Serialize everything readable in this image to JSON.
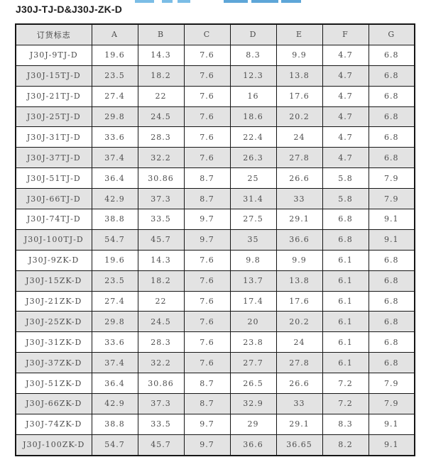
{
  "page": {
    "title": "J30J-TJ-D&J30J-ZK-D"
  },
  "table": {
    "headers": [
      "订货标志",
      "A",
      "B",
      "C",
      "D",
      "E",
      "F",
      "G"
    ],
    "rows": [
      [
        "J30J-9TJ-D",
        "19.6",
        "14.3",
        "7.6",
        "8.3",
        "9.9",
        "4.7",
        "6.8"
      ],
      [
        "J30J-15TJ-D",
        "23.5",
        "18.2",
        "7.6",
        "12.3",
        "13.8",
        "4.7",
        "6.8"
      ],
      [
        "J30J-21TJ-D",
        "27.4",
        "22",
        "7.6",
        "16",
        "17.6",
        "4.7",
        "6.8"
      ],
      [
        "J30J-25TJ-D",
        "29.8",
        "24.5",
        "7.6",
        "18.6",
        "20.2",
        "4.7",
        "6.8"
      ],
      [
        "J30J-31TJ-D",
        "33.6",
        "28.3",
        "7.6",
        "22.4",
        "24",
        "4.7",
        "6.8"
      ],
      [
        "J30J-37TJ-D",
        "37.4",
        "32.2",
        "7.6",
        "26.3",
        "27.8",
        "4.7",
        "6.8"
      ],
      [
        "J30J-51TJ-D",
        "36.4",
        "30.86",
        "8.7",
        "25",
        "26.6",
        "5.8",
        "7.9"
      ],
      [
        "J30J-66TJ-D",
        "42.9",
        "37.3",
        "8.7",
        "31.4",
        "33",
        "5.8",
        "7.9"
      ],
      [
        "J30J-74TJ-D",
        "38.8",
        "33.5",
        "9.7",
        "27.5",
        "29.1",
        "6.8",
        "9.1"
      ],
      [
        "J30J-100TJ-D",
        "54.7",
        "45.7",
        "9.7",
        "35",
        "36.6",
        "6.8",
        "9.1"
      ],
      [
        "J30J-9ZK-D",
        "19.6",
        "14.3",
        "7.6",
        "9.8",
        "9.9",
        "6.1",
        "6.8"
      ],
      [
        "J30J-15ZK-D",
        "23.5",
        "18.2",
        "7.6",
        "13.7",
        "13.8",
        "6.1",
        "6.8"
      ],
      [
        "J30J-21ZK-D",
        "27.4",
        "22",
        "7.6",
        "17.4",
        "17.6",
        "6.1",
        "6.8"
      ],
      [
        "J30J-25ZK-D",
        "29.8",
        "24.5",
        "7.6",
        "20",
        "20.2",
        "6.1",
        "6.8"
      ],
      [
        "J30J-31ZK-D",
        "33.6",
        "28.3",
        "7.6",
        "23.8",
        "24",
        "6.1",
        "6.8"
      ],
      [
        "J30J-37ZK-D",
        "37.4",
        "32.2",
        "7.6",
        "27.7",
        "27.8",
        "6.1",
        "6.8"
      ],
      [
        "J30J-51ZK-D",
        "36.4",
        "30.86",
        "8.7",
        "26.5",
        "26.6",
        "7.2",
        "7.9"
      ],
      [
        "J30J-66ZK-D",
        "42.9",
        "37.3",
        "8.7",
        "32.9",
        "33",
        "7.2",
        "7.9"
      ],
      [
        "J30J-74ZK-D",
        "38.8",
        "33.5",
        "9.7",
        "29",
        "29.1",
        "8.3",
        "9.1"
      ],
      [
        "J30J-100ZK-D",
        "54.7",
        "45.7",
        "9.7",
        "36.6",
        "36.65",
        "8.2",
        "9.1"
      ]
    ]
  },
  "colors": {
    "row_alt_bg": "#e3e3e3",
    "header_bg": "#e3e3e3",
    "border": "#161616",
    "cell_text": "#4d4d4d",
    "title_text": "#1f1f1f",
    "clipped_fragment_blue": "#7bbde6"
  }
}
